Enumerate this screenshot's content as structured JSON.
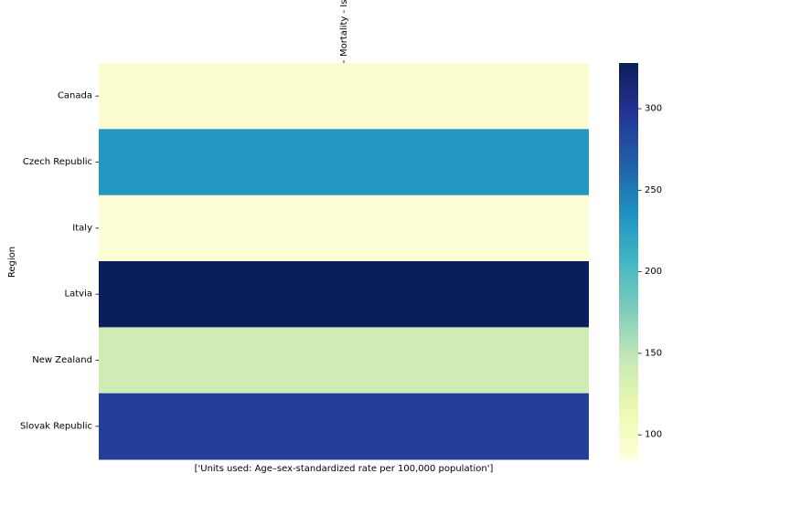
{
  "chart_data": {
    "type": "heatmap",
    "colormap": "YlGnBu",
    "xlabel": "['Units used: Age–sex-standardized rate per 100,000 population']",
    "ylabel": "Region",
    "columns": [
      "Mortality - Ischemic Heart Disease"
    ],
    "rows": [
      "Canada",
      "Czech Republic",
      "Italy",
      "Latvia",
      "New Zealand",
      "Slovak Republic"
    ],
    "values": [
      [
        92
      ],
      [
        232
      ],
      [
        87
      ],
      [
        327
      ],
      [
        140
      ],
      [
        290
      ]
    ],
    "colorbar": {
      "range": [
        85,
        328
      ],
      "ticks": [
        100,
        150,
        200,
        250,
        300
      ]
    }
  }
}
